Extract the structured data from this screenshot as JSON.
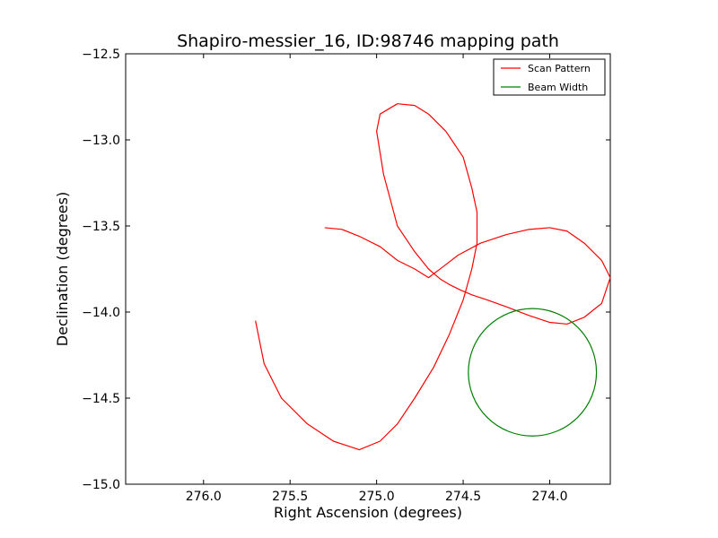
{
  "chart_data": {
    "type": "line",
    "title": "Shapiro-messier_16, ID:98746 mapping path",
    "xlabel": "Right Ascension (degrees)",
    "ylabel": "Declination (degrees)",
    "xlim": [
      276.45,
      273.65
    ],
    "ylim": [
      -15.0,
      -12.5
    ],
    "x_inverted": true,
    "x_ticks": [
      "276.0",
      "275.5",
      "275.0",
      "274.5",
      "274.0"
    ],
    "x_tick_values": [
      276.0,
      275.5,
      275.0,
      274.5,
      274.0
    ],
    "y_ticks": [
      "−12.5",
      "−13.0",
      "−13.5",
      "−14.0",
      "−14.5",
      "−15.0"
    ],
    "y_tick_values": [
      -12.5,
      -13.0,
      -13.5,
      -14.0,
      -14.5,
      -15.0
    ],
    "grid": false,
    "legend_position": "top-right",
    "series": [
      {
        "name": "Scan Pattern",
        "color": "#ff0000",
        "x": [
          275.3,
          275.2,
          275.1,
          274.98,
          274.88,
          274.78,
          274.7,
          274.62,
          274.53,
          274.4,
          274.25,
          274.12,
          274.0,
          273.9,
          273.8,
          273.7,
          273.65,
          273.7,
          273.8,
          273.9,
          274.0,
          274.12,
          274.25,
          274.36,
          274.45,
          274.52,
          274.58,
          274.63,
          274.7,
          274.78,
          274.88,
          274.96,
          275.0,
          274.98,
          274.88,
          274.78,
          274.7,
          274.6,
          274.5,
          274.45,
          274.42,
          274.42,
          274.45,
          274.5,
          274.58,
          274.67,
          274.78,
          274.88,
          274.98,
          275.1,
          275.25,
          275.4,
          275.55,
          275.65,
          275.7
        ],
        "y": [
          -13.51,
          -13.52,
          -13.56,
          -13.62,
          -13.7,
          -13.75,
          -13.8,
          -13.74,
          -13.67,
          -13.6,
          -13.55,
          -13.52,
          -13.51,
          -13.53,
          -13.6,
          -13.7,
          -13.8,
          -13.95,
          -14.03,
          -14.07,
          -14.06,
          -14.02,
          -13.97,
          -13.93,
          -13.9,
          -13.87,
          -13.84,
          -13.81,
          -13.75,
          -13.65,
          -13.5,
          -13.2,
          -12.95,
          -12.85,
          -12.79,
          -12.8,
          -12.85,
          -12.95,
          -13.1,
          -13.28,
          -13.42,
          -13.6,
          -13.75,
          -13.93,
          -14.13,
          -14.32,
          -14.5,
          -14.65,
          -14.75,
          -14.8,
          -14.75,
          -14.65,
          -14.5,
          -14.3,
          -14.05
        ]
      },
      {
        "name": "Beam Width",
        "color": "#008000",
        "shape": "circle",
        "center": [
          274.1,
          -14.35
        ],
        "radius_y": 0.37,
        "radius_x": 0.37
      }
    ]
  }
}
